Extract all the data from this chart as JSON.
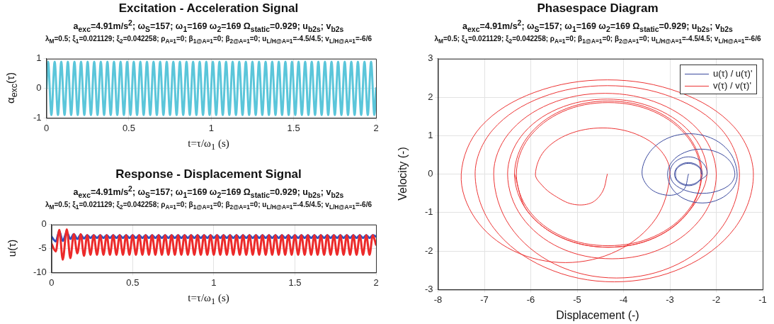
{
  "chart_data": [
    {
      "type": "line",
      "title": "Excitation - Acceleration Signal",
      "subtitle": "a$_{exc}$=4.91m/s$^{2}$; ω$_{S}$=157; ω$_{1}$=169 ω$_{2}$=169 Ω$_{static}$=0.929; u$_{b2s}$; v$_{b2s}$",
      "annotations": [
        "λ$_{M}$=0.5; ξ$_{1}$=0.021129; ξ$_{2}$=0.042258; ρ$_{A=1}$=0; β$_{1@A=1}$=0; β$_{2@A=1}$=0; u$_{L/H@A=1}$=-4.5/4.5; v$_{L/H@A=1}$=-6/6"
      ],
      "xlabel": "t=τ/ω$_{1}$ (s)",
      "ylabel": "α$_{exc}$(τ)",
      "x": [
        0,
        0.01,
        0.03,
        0.05,
        0.07,
        0.09,
        0.11,
        0.13,
        0.15,
        0.17,
        0.19,
        0.21,
        0.23,
        0.25,
        0.27,
        0.29,
        0.31,
        0.33,
        0.35,
        0.37,
        0.39,
        0.41,
        0.43,
        0.45,
        0.47,
        0.49,
        0.51,
        0.53,
        0.55,
        0.57,
        0.59,
        0.61,
        0.63,
        0.65,
        0.67,
        0.69,
        0.71,
        0.73,
        0.75,
        0.77,
        0.79,
        0.81,
        0.83,
        0.85,
        0.87,
        0.89,
        0.91,
        0.93,
        0.95,
        0.97,
        0.99,
        1.01,
        1.03,
        1.05,
        1.07,
        1.09,
        1.11,
        1.13,
        1.15,
        1.17,
        1.19,
        1.21,
        1.23,
        1.25,
        1.27,
        1.29,
        1.31,
        1.33,
        1.35,
        1.37,
        1.39,
        1.41,
        1.43,
        1.45,
        1.47,
        1.49,
        1.51,
        1.53,
        1.55,
        1.57,
        1.59,
        1.61,
        1.63,
        1.65,
        1.67,
        1.69,
        1.71,
        1.73,
        1.75,
        1.77,
        1.79,
        1.81,
        1.83,
        1.85,
        1.87,
        1.89,
        1.91,
        1.93,
        1.95,
        1.97,
        1.99,
        2
      ],
      "series": [
        {
          "color": "#5bc6da",
          "values": [
            0,
            0.9,
            -0.9,
            0.9,
            -0.9,
            0.9,
            -0.9,
            0.9,
            -0.9,
            0.9,
            -0.9,
            0.9,
            -0.9,
            0.9,
            -0.9,
            0.9,
            -0.9,
            0.9,
            -0.9,
            0.9,
            -0.9,
            0.9,
            -0.9,
            0.9,
            -0.9,
            0.9,
            -0.9,
            0.9,
            -0.9,
            0.9,
            -0.9,
            0.9,
            -0.9,
            0.9,
            -0.9,
            0.9,
            -0.9,
            0.9,
            -0.9,
            0.9,
            -0.9,
            0.9,
            -0.9,
            0.9,
            -0.9,
            0.9,
            -0.9,
            0.9,
            -0.9,
            0.9,
            -0.9,
            0.9,
            -0.9,
            0.9,
            -0.9,
            0.9,
            -0.9,
            0.9,
            -0.9,
            0.9,
            -0.9,
            0.9,
            -0.9,
            0.9,
            -0.9,
            0.9,
            -0.9,
            0.9,
            -0.9,
            0.9,
            -0.9,
            0.9,
            -0.9,
            0.9,
            -0.9,
            0.9,
            -0.9,
            0.9,
            -0.9,
            0.9,
            -0.9,
            0.9,
            -0.9,
            0.9,
            -0.9,
            0.9,
            -0.9,
            0.9,
            -0.9,
            0.9,
            -0.9,
            0.9,
            -0.9,
            0.9,
            -0.9,
            0.9,
            -0.9,
            0.9,
            -0.9,
            0.9,
            -0.9,
            0
          ]
        }
      ],
      "xlim": [
        0,
        2
      ],
      "xticks": [
        0,
        0.5,
        1,
        1.5,
        2
      ],
      "ylim": [
        -1,
        1
      ],
      "yticks": [
        -1,
        0,
        1
      ],
      "grid": true
    },
    {
      "type": "line",
      "title": "Response - Displacement Signal",
      "subtitle": "a$_{exc}$=4.91m/s$^{2}$; ω$_{S}$=157; ω$_{1}$=169 ω$_{2}$=169 Ω$_{static}$=0.929; u$_{b2s}$; v$_{b2s}$",
      "annotations": [
        "λ$_{M}$=0.5; ξ$_{1}$=0.021129; ξ$_{2}$=0.042258; ρ$_{A=1}$=0; β$_{1@A=1}$=0; β$_{2@A=1}$=0; u$_{L/H@A=1}$=-4.5/4.5; v$_{L/H@A=1}$=-6/6"
      ],
      "xlabel": "t=τ/ω$_{1}$ (s)",
      "ylabel": "u(τ)",
      "x": [
        0,
        0.026,
        0.048,
        0.069,
        0.094,
        0.116,
        0.137,
        0.159,
        0.18,
        0.2,
        0.22,
        0.24,
        0.26,
        0.28,
        0.3,
        0.32,
        0.34,
        0.36,
        0.38,
        0.4,
        0.42,
        0.44,
        0.46,
        0.48,
        0.5,
        0.52,
        0.54,
        0.56,
        0.58,
        0.6,
        0.62,
        0.64,
        0.66,
        0.68,
        0.7,
        0.72,
        0.74,
        0.76,
        0.78,
        0.8,
        0.82,
        0.84,
        0.86,
        0.88,
        0.9,
        0.92,
        0.94,
        0.96,
        0.98,
        1,
        1.02,
        1.04,
        1.06,
        1.08,
        1.1,
        1.12,
        1.14,
        1.16,
        1.18,
        1.2,
        1.22,
        1.24,
        1.26,
        1.28,
        1.3,
        1.32,
        1.34,
        1.36,
        1.38,
        1.4,
        1.42,
        1.44,
        1.46,
        1.48,
        1.5,
        1.52,
        1.54,
        1.56,
        1.58,
        1.6,
        1.62,
        1.64,
        1.66,
        1.68,
        1.7,
        1.72,
        1.74,
        1.76,
        1.78,
        1.8,
        1.82,
        1.84,
        1.86,
        1.88,
        1.9,
        1.92,
        1.94,
        1.96,
        1.98,
        2
      ],
      "series": [
        {
          "color": "#ec2a2a",
          "values": [
            -4,
            -5.6,
            -1.1,
            -7.3,
            -1,
            -7,
            -2,
            -6,
            -2,
            -6.5,
            -2.2,
            -6.3,
            -2.2,
            -6.3,
            -2.2,
            -6.3,
            -2.2,
            -6.3,
            -2.2,
            -6.3,
            -2.2,
            -6.3,
            -2.2,
            -6.3,
            -2.2,
            -6.3,
            -2.2,
            -6.3,
            -2.2,
            -6.3,
            -2.2,
            -6.3,
            -2.2,
            -6.3,
            -2.2,
            -6.3,
            -2.2,
            -6.3,
            -2.2,
            -6.3,
            -2.2,
            -6.3,
            -2.2,
            -6.3,
            -2.2,
            -6.3,
            -2.2,
            -6.3,
            -2.2,
            -6.3,
            -2.2,
            -6.3,
            -2.2,
            -6.3,
            -2.2,
            -6.3,
            -2.2,
            -6.3,
            -2.2,
            -6.3,
            -2.2,
            -6.3,
            -2.2,
            -6.3,
            -2.2,
            -6.3,
            -2.2,
            -6.3,
            -2.2,
            -6.3,
            -2.2,
            -6.3,
            -2.2,
            -6.3,
            -2.2,
            -6.3,
            -2.2,
            -6.3,
            -2.2,
            -6.3,
            -2.2,
            -6.3,
            -2.2,
            -6.3,
            -2.2,
            -6.3,
            -2.2,
            -6.3,
            -2.2,
            -6.3,
            -2.2,
            -6.3,
            -2.2,
            -6.3,
            -2.2,
            -6.3,
            -2.2,
            -6.3,
            -2.2,
            -4.2
          ]
        },
        {
          "color": "#2f4fc0",
          "values": [
            -2.5,
            -3.5,
            -1.4,
            -3.4,
            -1.6,
            -3,
            -2,
            -3,
            -2.1,
            -2.9,
            -2.2,
            -2.8,
            -2.2,
            -2.8,
            -2.2,
            -2.8,
            -2.2,
            -2.8,
            -2.2,
            -2.8,
            -2.2,
            -2.8,
            -2.2,
            -2.8,
            -2.2,
            -2.8,
            -2.2,
            -2.8,
            -2.2,
            -2.8,
            -2.2,
            -2.8,
            -2.2,
            -2.8,
            -2.2,
            -2.8,
            -2.2,
            -2.8,
            -2.2,
            -2.8,
            -2.2,
            -2.8,
            -2.2,
            -2.8,
            -2.2,
            -2.8,
            -2.2,
            -2.8,
            -2.2,
            -2.8,
            -2.2,
            -2.8,
            -2.2,
            -2.8,
            -2.2,
            -2.8,
            -2.2,
            -2.8,
            -2.2,
            -2.8,
            -2.2,
            -2.8,
            -2.2,
            -2.8,
            -2.2,
            -2.8,
            -2.2,
            -2.8,
            -2.2,
            -2.8,
            -2.2,
            -2.8,
            -2.2,
            -2.8,
            -2.2,
            -2.8,
            -2.2,
            -2.8,
            -2.2,
            -2.8,
            -2.2,
            -2.8,
            -2.2,
            -2.8,
            -2.2,
            -2.8,
            -2.2,
            -2.8,
            -2.2,
            -2.8,
            -2.2,
            -2.8,
            -2.2,
            -2.8,
            -2.2,
            -2.8,
            -2.2,
            -2.8,
            -2.2,
            -2.5
          ]
        }
      ],
      "xlim": [
        0,
        2
      ],
      "xticks": [
        0,
        0.5,
        1,
        1.5,
        2
      ],
      "ylim": [
        -10,
        0
      ],
      "yticks": [
        -10,
        -5,
        0
      ],
      "grid": true
    },
    {
      "type": "line",
      "title": "Phasespace Diagram",
      "subtitle": "a$_{exc}$=4.91m/s$^{2}$; ω$_{S}$=157; ω$_{1}$=169 ω$_{2}$=169 Ω$_{static}$=0.929; u$_{b2s}$; v$_{b2s}$",
      "annotations": [
        "λ$_{M}$=0.5; ξ$_{1}$=0.021129; ξ$_{2}$=0.042258; ρ$_{A=1}$=0; β$_{1@A=1}$=0; β$_{2@A=1}$=0; u$_{L/H@A=1}$=-4.5/4.5; v$_{L/H@A=1}$=-6/6"
      ],
      "xlabel": "Displacement (-)",
      "ylabel": "Velocity (-)",
      "series": [
        {
          "name": "u(τ) / u(τ)'",
          "color": "#3b4a9e",
          "x": [
            -2.6,
            -2.7,
            -3,
            -3.4,
            -3.6,
            -3.46,
            -3.09,
            -2.58,
            -2.06,
            -1.69,
            -1.55,
            -1.65,
            -1.93,
            -2.3,
            -2.68,
            -2.95,
            -3.05,
            -2.95,
            -2.69,
            -2.33,
            -1.96,
            -1.7,
            -1.6,
            -1.69,
            -1.95,
            -2.3,
            -2.65,
            -2.91,
            -3,
            -2.95,
            -2.8,
            -2.6,
            -2.4,
            -2.25,
            -2.2,
            -2.34,
            -2.45,
            -2.6,
            -2.75,
            -2.86,
            -2.9,
            -2.86,
            -2.75,
            -2.6,
            -2.45,
            -2.34,
            -2.3,
            -2.35,
            -2.46,
            -2.6,
            -2.74,
            -2.85,
            -2.88,
            -2.85,
            -2.74,
            -2.6,
            -2.46,
            -2.35,
            -2.32
          ],
          "values": [
            0,
            -0.4,
            -0.55,
            -0.4,
            0,
            0.53,
            0.91,
            1.05,
            0.91,
            0.53,
            0,
            -0.38,
            -0.65,
            -0.75,
            -0.65,
            -0.38,
            0,
            0.33,
            0.56,
            0.65,
            0.56,
            0.33,
            0,
            -0.25,
            -0.43,
            -0.5,
            -0.43,
            -0.25,
            0,
            0.23,
            0.39,
            0.45,
            0.39,
            0.23,
            0,
            -0.15,
            -0.26,
            -0.3,
            -0.26,
            -0.15,
            0,
            0.15,
            0.26,
            0.3,
            0.26,
            0.15,
            0,
            -0.14,
            -0.24,
            -0.28,
            -0.24,
            -0.14,
            0,
            0.14,
            0.24,
            0.28,
            0.24,
            0.14,
            0
          ]
        },
        {
          "name": "v(τ) / v(τ)'",
          "color": "#ec3434",
          "x": [
            -4.35,
            -4.45,
            -4.7,
            -5.1,
            -5.5,
            -5.75,
            -5.9,
            -5.71,
            -5.18,
            -4.45,
            -3.73,
            -3.19,
            -3,
            -3.3,
            -4.13,
            -5.25,
            -6.38,
            -7.2,
            -7.5,
            -7.08,
            -5.93,
            -4.35,
            -2.78,
            -1.62,
            -1.2,
            -1.6,
            -2.7,
            -4.2,
            -5.7,
            -6.8,
            -7.2,
            -6.82,
            -5.78,
            -4.35,
            -2.93,
            -1.88,
            -1.5,
            -1.86,
            -2.83,
            -4.15,
            -5.48,
            -6.45,
            -6.8,
            -6.48,
            -5.6,
            -4.4,
            -3.2,
            -2.32,
            -2,
            -2.3,
            -3.13,
            -4.25,
            -5.38,
            -6.2,
            -6.5,
            -6.21,
            -5.43,
            -4.35,
            -3.28,
            -2.49,
            -2.2,
            -2.58,
            -3.32,
            -4.33,
            -5.34,
            -6.08,
            -6.35,
            -6.08,
            -5.34,
            -4.33,
            -3.32,
            -2.58,
            -2.31,
            -2.6,
            -3.34,
            -4.33,
            -5.32,
            -6.05,
            -6.31,
            -6.05,
            -5.32,
            -4.33,
            -3.34,
            -2.6,
            -2.33,
            -2.58,
            -3.32,
            -4.33,
            -5.34,
            -6.08,
            -6.35
          ],
          "values": [
            0,
            -0.45,
            -0.75,
            -0.78,
            -0.55,
            -0.3,
            0,
            0.6,
            1.04,
            1.2,
            1.04,
            0.6,
            0,
            -1.15,
            -1.99,
            -2.3,
            -1.99,
            -1.15,
            0,
            1.23,
            2.12,
            2.45,
            2.12,
            1.23,
            0,
            -1.4,
            -2.42,
            -2.8,
            -2.42,
            -1.4,
            0,
            1.15,
            1.99,
            2.3,
            1.99,
            1.15,
            0,
            -1.35,
            -2.34,
            -2.7,
            -2.34,
            -1.35,
            0,
            1.05,
            1.82,
            2.1,
            1.82,
            1.05,
            0,
            -1.1,
            -1.91,
            -2.2,
            -1.91,
            -1.1,
            0,
            0.98,
            1.69,
            1.95,
            1.69,
            0.98,
            0,
            -0.95,
            -1.65,
            -1.9,
            -1.65,
            -0.95,
            0,
            0.95,
            1.65,
            1.9,
            1.65,
            0.95,
            0,
            -0.93,
            -1.62,
            -1.86,
            -1.62,
            -0.93,
            0,
            0.93,
            1.62,
            1.86,
            1.62,
            0.93,
            0,
            -0.95,
            -1.65,
            -1.9,
            -1.65,
            -0.95,
            0
          ]
        }
      ],
      "xlim": [
        -8,
        -1
      ],
      "xticks": [
        -8,
        -7,
        -6,
        -5,
        -4,
        -3,
        -2,
        -1
      ],
      "ylim": [
        -3,
        3
      ],
      "yticks": [
        -3,
        -2,
        -1,
        0,
        1,
        2,
        3
      ],
      "grid": true,
      "legend": "top right"
    }
  ]
}
